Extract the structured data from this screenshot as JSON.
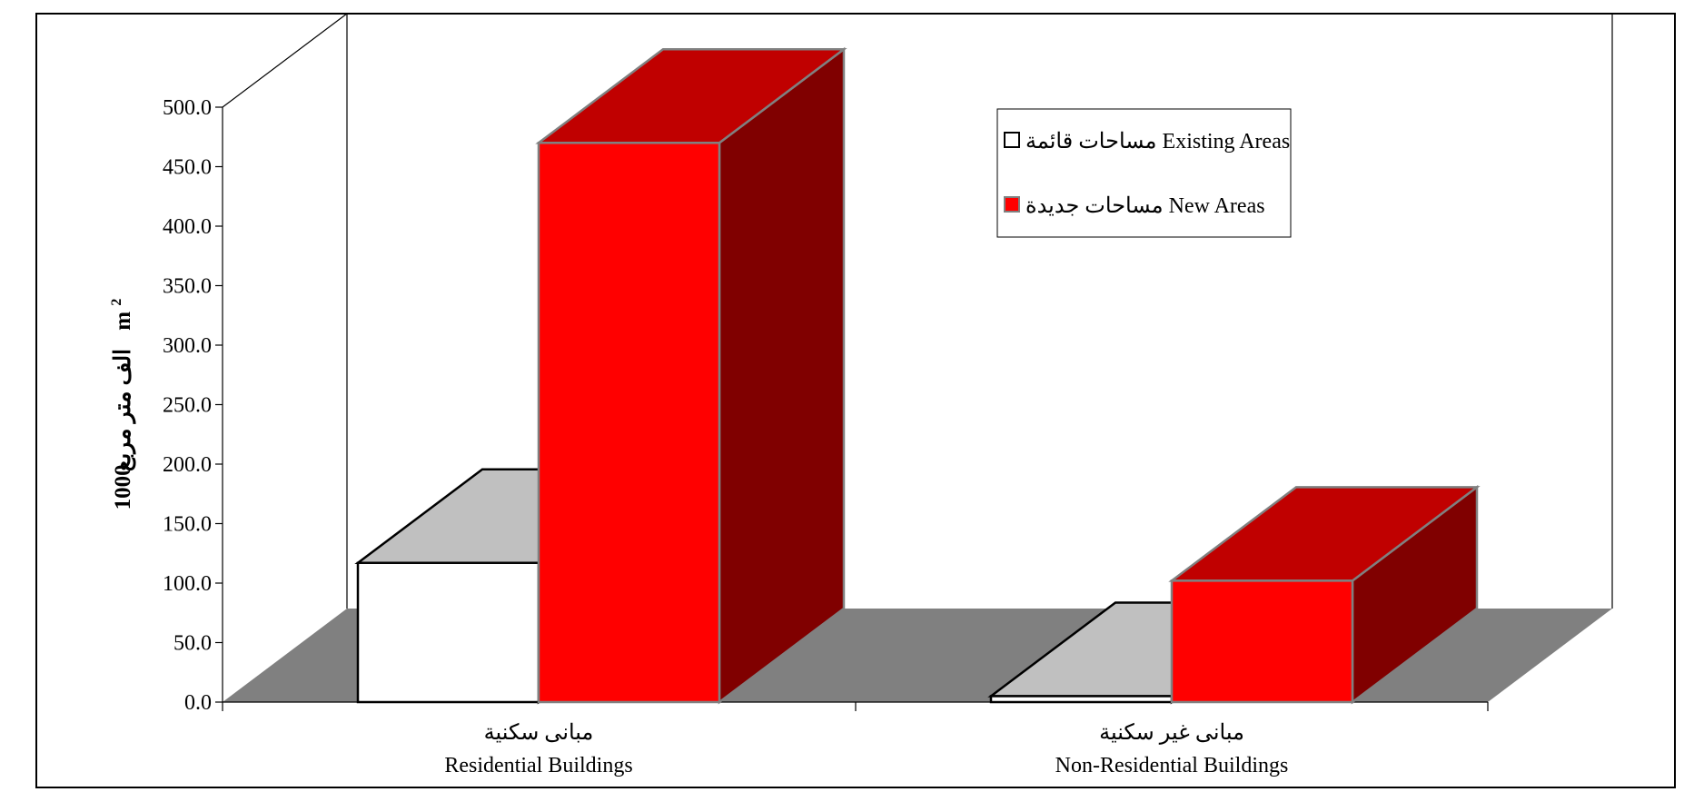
{
  "chart_data": {
    "type": "bar",
    "ylabel": {
      "arabic": "الف متر مربع",
      "english": "1000 m",
      "sup": "2"
    },
    "ylim": [
      0,
      500
    ],
    "ytick_labels": [
      "0.0",
      "50.0",
      "100.0",
      "150.0",
      "200.0",
      "250.0",
      "300.0",
      "350.0",
      "400.0",
      "450.0",
      "500.0"
    ],
    "categories": [
      {
        "arabic": "مبانى سكنية",
        "english": "Residential Buildings"
      },
      {
        "arabic": "مبانى غير سكنية",
        "english": "Non-Residential Buildings"
      }
    ],
    "series": [
      {
        "name": "مساحات قائمة Existing Areas",
        "values": [
          117,
          5
        ]
      },
      {
        "name": "مساحات جديدة New Areas",
        "values": [
          470,
          102
        ]
      }
    ],
    "legend_position": "top-right",
    "grid": false
  },
  "colors": {
    "existing_front": "#ffffff",
    "existing_top": "#c0c0c0",
    "new_front": "#ff0000",
    "new_top": "#c00000",
    "new_side": "#800000",
    "floor": "#808080"
  }
}
